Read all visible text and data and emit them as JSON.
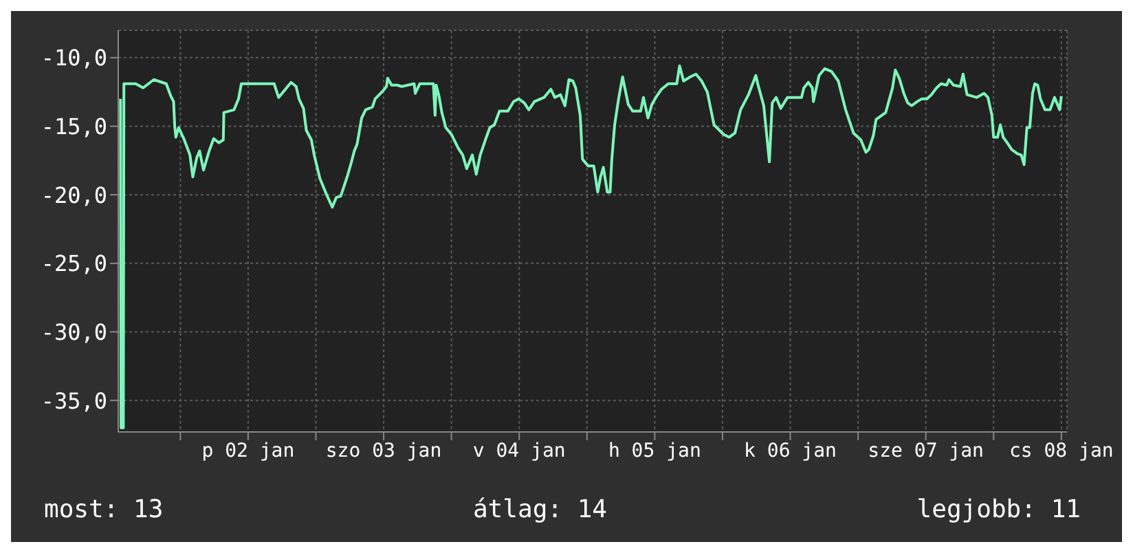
{
  "chart_data": {
    "type": "line",
    "x": [
      "--01-01T13:24",
      "--01-01T13:30",
      "--01-01T13:54",
      "--01-01T14:00",
      "--01-01T16:06",
      "--01-01T17:24",
      "--01-01T19:18",
      "--01-01T21:30",
      "--01-01T22:18",
      "--01-01T22:48",
      "--01-01T23:00",
      "--01-01T23:12",
      "--01-01T23:42",
      "--01-02T00:42",
      "--01-02T01:42",
      "--01-02T02:12",
      "--01-02T02:54",
      "--01-02T03:24",
      "--01-02T04:06",
      "--01-02T05:06",
      "--01-02T05:54",
      "--01-02T06:48",
      "--01-02T07:36",
      "--01-02T07:42",
      "--01-02T09:30",
      "--01-02T10:18",
      "--01-02T10:48",
      "--01-02T16:36",
      "--01-02T17:24",
      "--01-02T18:48",
      "--01-02T19:36",
      "--01-02T20:30",
      "--01-02T21:00",
      "--01-02T21:48",
      "--01-02T22:18",
      "--01-02T23:12",
      "--01-02T23:42",
      "--01-03T00:42",
      "--01-03T01:54",
      "--01-03T02:54",
      "--01-03T03:36",
      "--01-03T04:24",
      "--01-03T05:36",
      "--01-03T06:18",
      "--01-03T06:48",
      "--01-03T07:18",
      "--01-03T08:06",
      "--01-03T08:48",
      "--01-03T10:00",
      "--01-03T10:30",
      "--01-03T11:42",
      "--01-03T12:30",
      "--01-03T12:42",
      "--01-03T13:24",
      "--01-03T14:24",
      "--01-03T15:12",
      "--01-03T17:24",
      "--01-03T17:36",
      "--01-03T18:24",
      "--01-03T20:48",
      "--01-03T21:06",
      "--01-03T21:18",
      "--01-03T21:48",
      "--01-03T22:18",
      "--01-03T23:00",
      "--01-04T00:00",
      "--01-04T01:12",
      "--01-04T02:00",
      "--01-04T02:42",
      "--01-04T03:42",
      "--01-04T04:24",
      "--01-04T05:06",
      "--01-04T06:06",
      "--01-04T06:48",
      "--01-04T07:36",
      "--01-04T08:30",
      "--01-04T10:00",
      "--01-04T11:00",
      "--01-04T11:54",
      "--01-04T12:54",
      "--01-04T13:42",
      "--01-04T14:42",
      "--01-04T16:24",
      "--01-04T17:36",
      "--01-04T18:18",
      "--01-04T19:18",
      "--01-04T20:06",
      "--01-04T20:48",
      "--01-04T21:30",
      "--01-04T22:00",
      "--01-04T22:48",
      "--01-04T23:12",
      "--01-05T00:12",
      "--01-05T01:12",
      "--01-05T01:54",
      "--01-05T02:24",
      "--01-05T02:54",
      "--01-05T03:36",
      "--01-05T04:06",
      "--01-05T04:24",
      "--01-05T04:54",
      "--01-05T05:36",
      "--01-05T06:18",
      "--01-05T07:18",
      "--01-05T08:06",
      "--01-05T09:30",
      "--01-05T10:00",
      "--01-05T10:48",
      "--01-05T11:30",
      "--01-05T12:12",
      "--01-05T13:12",
      "--01-05T14:24",
      "--01-05T15:54",
      "--01-05T16:24",
      "--01-05T17:06",
      "--01-05T18:18",
      "--01-05T19:18",
      "--01-05T20:18",
      "--01-05T21:18",
      "--01-05T22:30",
      "--01-06T00:12",
      "--01-06T01:12",
      "--01-06T02:12",
      "--01-06T03:12",
      "--01-06T04:36",
      "--01-06T05:54",
      "--01-06T06:18",
      "--01-06T07:18",
      "--01-06T08:18",
      "--01-06T08:48",
      "--01-06T09:30",
      "--01-06T10:18",
      "--01-06T11:30",
      "--01-06T14:00",
      "--01-06T14:24",
      "--01-06T15:12",
      "--01-06T15:54",
      "--01-06T16:06",
      "--01-06T17:06",
      "--01-06T18:06",
      "--01-06T19:18",
      "--01-06T20:30",
      "--01-06T21:48",
      "--01-06T23:12",
      "--01-07T00:30",
      "--01-07T01:24",
      "--01-07T01:54",
      "--01-07T02:42",
      "--01-07T03:12",
      "--01-07T04:54",
      "--01-07T06:06",
      "--01-07T06:36",
      "--01-07T07:18",
      "--01-07T08:06",
      "--01-07T08:48",
      "--01-07T09:30",
      "--01-07T10:30",
      "--01-07T11:18",
      "--01-07T12:12",
      "--01-07T13:00",
      "--01-07T13:54",
      "--01-07T14:42",
      "--01-07T15:42",
      "--01-07T16:06",
      "--01-07T16:54",
      "--01-07T18:06",
      "--01-07T18:36",
      "--01-07T19:18",
      "--01-07T21:00",
      "--01-07T22:18",
      "--01-07T23:00",
      "--01-07T23:42",
      "--01-08T00:00",
      "--01-08T00:42",
      "--01-08T01:12",
      "--01-08T01:42",
      "--01-08T02:24",
      "--01-08T03:12",
      "--01-08T04:12",
      "--01-08T04:54",
      "--01-08T05:24",
      "--01-08T05:54",
      "--01-08T06:24",
      "--01-08T06:54",
      "--01-08T07:18",
      "--01-08T07:48",
      "--01-08T08:18",
      "--01-08T09:06",
      "--01-08T10:00",
      "--01-08T10:48",
      "--01-08T11:18",
      "--01-08T11:42",
      "--01-08T12:00"
    ],
    "series": [
      {
        "color": "#7df5b9",
        "values": [
          -13.0,
          -37.0,
          -37.0,
          -11.9,
          -11.9,
          -12.2,
          -11.6,
          -11.9,
          -12.8,
          -13.2,
          -15.0,
          -15.8,
          -15.1,
          -16.0,
          -17.1,
          -18.7,
          -17.3,
          -16.8,
          -18.2,
          -16.8,
          -15.9,
          -16.2,
          -16.0,
          -14.0,
          -13.8,
          -13.0,
          -11.9,
          -11.9,
          -12.9,
          -12.2,
          -11.8,
          -12.1,
          -13.0,
          -13.7,
          -15.3,
          -16.0,
          -17.1,
          -18.8,
          -20.0,
          -20.9,
          -20.2,
          -20.1,
          -18.6,
          -17.6,
          -16.8,
          -16.3,
          -14.4,
          -13.8,
          -13.6,
          -13.0,
          -12.5,
          -12.1,
          -11.5,
          -12.0,
          -12.0,
          -12.1,
          -11.9,
          -12.6,
          -11.9,
          -11.9,
          -14.2,
          -12.0,
          -12.8,
          -14.0,
          -15.1,
          -15.6,
          -16.6,
          -17.1,
          -18.1,
          -17.1,
          -18.5,
          -17.1,
          -15.9,
          -15.1,
          -14.9,
          -13.9,
          -13.9,
          -13.2,
          -13.0,
          -13.3,
          -13.8,
          -13.2,
          -12.9,
          -12.3,
          -12.9,
          -12.7,
          -13.5,
          -11.6,
          -11.7,
          -12.2,
          -14.2,
          -17.4,
          -17.9,
          -17.9,
          -19.8,
          -18.7,
          -18.0,
          -19.8,
          -19.8,
          -17.4,
          -14.9,
          -13.0,
          -11.4,
          -13.4,
          -13.9,
          -13.9,
          -12.9,
          -14.4,
          -13.4,
          -12.9,
          -12.3,
          -11.9,
          -11.9,
          -10.6,
          -11.7,
          -11.4,
          -11.2,
          -11.7,
          -12.5,
          -14.9,
          -15.6,
          -15.8,
          -15.5,
          -13.8,
          -12.7,
          -11.3,
          -12.0,
          -13.5,
          -17.6,
          -13.3,
          -12.9,
          -13.7,
          -12.9,
          -12.9,
          -12.2,
          -11.8,
          -12.2,
          -13.2,
          -11.3,
          -10.8,
          -11.0,
          -11.7,
          -13.8,
          -15.5,
          -16.0,
          -16.9,
          -16.7,
          -15.7,
          -14.5,
          -14.0,
          -12.2,
          -10.9,
          -11.5,
          -12.6,
          -13.3,
          -13.5,
          -13.2,
          -13.0,
          -13.0,
          -12.7,
          -12.2,
          -11.9,
          -12.0,
          -11.6,
          -12.0,
          -12.1,
          -11.2,
          -12.7,
          -12.9,
          -12.6,
          -12.9,
          -14.2,
          -15.8,
          -15.8,
          -14.9,
          -15.8,
          -16.2,
          -16.7,
          -17.0,
          -17.1,
          -17.8,
          -15.1,
          -15.1,
          -12.6,
          -11.9,
          -12.0,
          -13.0,
          -13.8,
          -13.8,
          -12.9,
          -13.4,
          -13.8,
          -12.8
        ]
      }
    ],
    "xlim": [
      "--01-01T13:00",
      "--01-08T13:00"
    ],
    "xticks": [
      {
        "value": "--01-02T00:00",
        "label": null
      },
      {
        "value": "--01-02T12:00",
        "label": "p 02 jan"
      },
      {
        "value": "--01-03T00:00",
        "label": null
      },
      {
        "value": "--01-03T12:00",
        "label": "szo 03 jan"
      },
      {
        "value": "--01-04T00:00",
        "label": null
      },
      {
        "value": "--01-04T12:00",
        "label": "v 04 jan"
      },
      {
        "value": "--01-05T00:00",
        "label": null
      },
      {
        "value": "--01-05T12:00",
        "label": "h 05 jan"
      },
      {
        "value": "--01-06T00:00",
        "label": null
      },
      {
        "value": "--01-06T12:00",
        "label": "k 06 jan"
      },
      {
        "value": "--01-07T00:00",
        "label": null
      },
      {
        "value": "--01-07T12:00",
        "label": "sze 07 jan"
      },
      {
        "value": "--01-08T00:00",
        "label": null
      },
      {
        "value": "--01-08T12:00",
        "label": "cs 08 jan"
      }
    ],
    "ylim": [
      -37.3,
      -8
    ],
    "yticks": [
      {
        "value": -35,
        "label": "-35,0"
      },
      {
        "value": -30,
        "label": "-30,0"
      },
      {
        "value": -25,
        "label": "-25,0"
      },
      {
        "value": -20,
        "label": "-20,0"
      },
      {
        "value": -15,
        "label": "-15,0"
      },
      {
        "value": -10,
        "label": "-10,0"
      }
    ],
    "grid": true,
    "annotations": [
      "most: 13",
      "átlag: 14",
      "legjobb: 11"
    ]
  }
}
